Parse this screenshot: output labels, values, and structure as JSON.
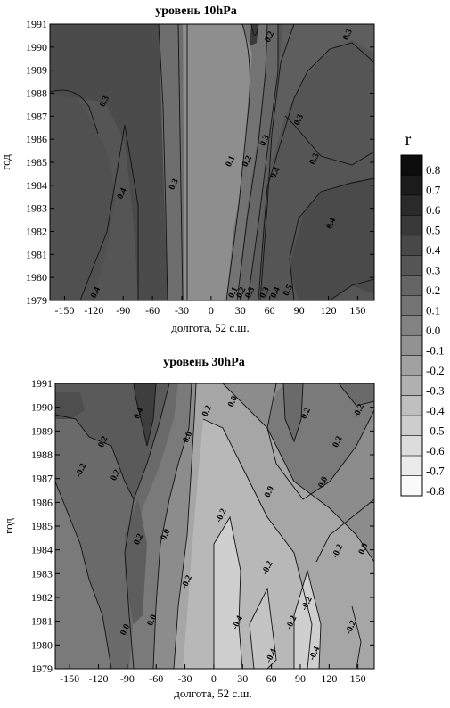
{
  "chart_data": [
    {
      "type": "contour",
      "title": "уровень 10hPa",
      "xlabel": "долгота, 52 с.ш.",
      "ylabel": "год",
      "x_ticks": [
        -150,
        -120,
        -90,
        -60,
        -30,
        0,
        30,
        60,
        90,
        120,
        150
      ],
      "y_ticks": [
        1979,
        1980,
        1981,
        1982,
        1983,
        1984,
        1985,
        1986,
        1987,
        1988,
        1989,
        1990,
        1991
      ],
      "xlim": [
        -165,
        167
      ],
      "ylim": [
        1979,
        1991
      ],
      "contour_labels": [
        {
          "text": "0.3",
          "x": 142,
          "y": 1990.5
        },
        {
          "text": "0.2",
          "x": 62,
          "y": 1990.4
        },
        {
          "text": "0.3",
          "x": -107,
          "y": 1987.6
        },
        {
          "text": "0.3",
          "x": 92,
          "y": 1986.8
        },
        {
          "text": "0.1",
          "x": 22,
          "y": 1985
        },
        {
          "text": "0.2",
          "x": 39,
          "y": 1985
        },
        {
          "text": "0.3",
          "x": 57,
          "y": 1985.9
        },
        {
          "text": "0.3",
          "x": 108,
          "y": 1985.1
        },
        {
          "text": "0.3",
          "x": -36,
          "y": 1984
        },
        {
          "text": "0.4",
          "x": -89,
          "y": 1983.6
        },
        {
          "text": "0.4",
          "x": 68,
          "y": 1984.5
        },
        {
          "text": "0.4",
          "x": 125,
          "y": 1982.3
        },
        {
          "text": "0.4",
          "x": -116,
          "y": 1979.3
        },
        {
          "text": "0.1",
          "x": 25,
          "y": 1979.3
        },
        {
          "text": "0.2",
          "x": 33,
          "y": 1979.3
        },
        {
          "text": "0.3",
          "x": 42,
          "y": 1979.3
        },
        {
          "text": "0.3",
          "x": 57,
          "y": 1979.3
        },
        {
          "text": "0.4",
          "x": 68,
          "y": 1979.3
        },
        {
          "text": "0.5",
          "x": 81,
          "y": 1979.4
        }
      ]
    },
    {
      "type": "contour",
      "title": "уровень 30hPa",
      "xlabel": "долгота, 52 с.ш.",
      "ylabel": "год",
      "x_ticks": [
        -150,
        -120,
        -90,
        -60,
        -30,
        0,
        30,
        60,
        90,
        120,
        150
      ],
      "y_ticks": [
        1979,
        1980,
        1981,
        1982,
        1983,
        1984,
        1985,
        1986,
        1987,
        1988,
        1989,
        1990,
        1991
      ],
      "xlim": [
        -165,
        167
      ],
      "ylim": [
        1979,
        1991
      ],
      "contour_labels": [
        {
          "text": "0.4",
          "x": -76,
          "y": 1989.7
        },
        {
          "text": "0.2",
          "x": -5,
          "y": 1989.8
        },
        {
          "text": "0.0",
          "x": 22,
          "y": 1990.2
        },
        {
          "text": "0.2",
          "x": 98,
          "y": 1989.7
        },
        {
          "text": "-0.2",
          "x": 153,
          "y": 1989.8
        },
        {
          "text": "0.2",
          "x": -113,
          "y": 1988.5
        },
        {
          "text": "0.0",
          "x": -25,
          "y": 1988.7
        },
        {
          "text": "0.2",
          "x": 131,
          "y": 1988.5
        },
        {
          "text": "-0.2",
          "x": -136,
          "y": 1987.3
        },
        {
          "text": "0.2",
          "x": -100,
          "y": 1987.1
        },
        {
          "text": "0.0",
          "x": 60,
          "y": 1986.4
        },
        {
          "text": "0.0",
          "x": 116,
          "y": 1986.8
        },
        {
          "text": "-0.2",
          "x": 10,
          "y": 1985.4
        },
        {
          "text": "0.2",
          "x": -76,
          "y": 1984.4
        },
        {
          "text": "0.0",
          "x": -48,
          "y": 1984.6
        },
        {
          "text": "0.0",
          "x": 158,
          "y": 1984
        },
        {
          "text": "-0.2",
          "x": 131,
          "y": 1983.9
        },
        {
          "text": "-0.2",
          "x": 58,
          "y": 1983.2
        },
        {
          "text": "-0.2",
          "x": -26,
          "y": 1982.6
        },
        {
          "text": "-0.2",
          "x": 99,
          "y": 1981.7
        },
        {
          "text": "-0.2",
          "x": 83,
          "y": 1980.9
        },
        {
          "text": "-0.4",
          "x": 27,
          "y": 1980.9
        },
        {
          "text": "0.0",
          "x": -90,
          "y": 1980.6
        },
        {
          "text": "0.0",
          "x": -62,
          "y": 1981
        },
        {
          "text": "-0.2",
          "x": 145,
          "y": 1980.7
        },
        {
          "text": "-0.4",
          "x": 62,
          "y": 1979.5
        },
        {
          "text": "-0.4",
          "x": 107,
          "y": 1979.6
        }
      ]
    }
  ],
  "colorbar": {
    "label": "r",
    "levels": [
      "0.8",
      "0.7",
      "0.6",
      "0.5",
      "0.4",
      "0.3",
      "0.2",
      "0.1",
      "0.0",
      "-0.1",
      "-0.2",
      "-0.3",
      "-0.4",
      "-0.5",
      "-0.6",
      "-0.7",
      "-0.8"
    ]
  }
}
